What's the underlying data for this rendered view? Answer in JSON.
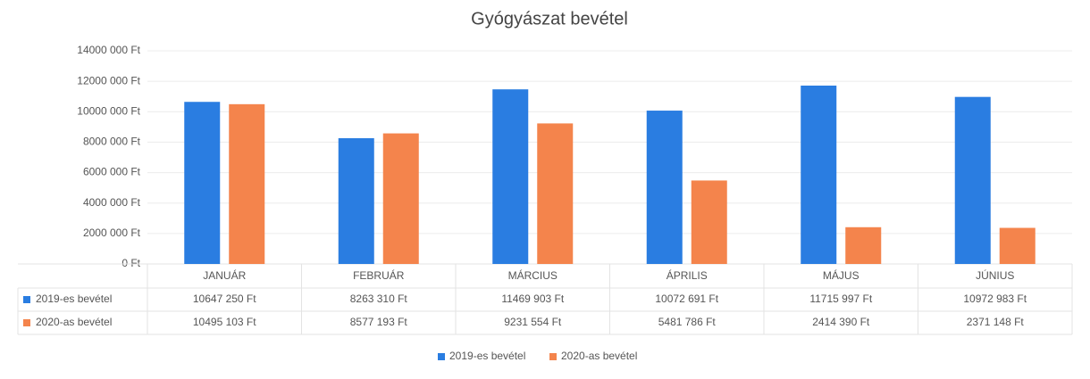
{
  "chart_data": {
    "type": "bar",
    "title": "Gyógyászat bevétel",
    "categories": [
      "JANUÁR",
      "FEBRUÁR",
      "MÁRCIUS",
      "ÁPRILIS",
      "MÁJUS",
      "JÚNIUS"
    ],
    "series": [
      {
        "name": "2019-es bevétel",
        "color": "#2a7de1",
        "values": [
          10647250,
          8263310,
          11469903,
          10072691,
          11715997,
          10972983
        ],
        "value_labels": [
          "10647 250 Ft",
          "8263 310 Ft",
          "11469 903 Ft",
          "10072 691 Ft",
          "11715 997 Ft",
          "10972 983 Ft"
        ]
      },
      {
        "name": "2020-as bevétel",
        "color": "#f4844c",
        "values": [
          10495103,
          8577193,
          9231554,
          5481786,
          2414390,
          2371148
        ],
        "value_labels": [
          "10495 103 Ft",
          "8577 193 Ft",
          "9231 554 Ft",
          "5481 786 Ft",
          "2414 390 Ft",
          "2371 148 Ft"
        ]
      }
    ],
    "ylim": [
      0,
      14000000
    ],
    "yticks": [
      {
        "value": 0,
        "label": "0 Ft"
      },
      {
        "value": 2000000,
        "label": "2000 000 Ft"
      },
      {
        "value": 4000000,
        "label": "4000 000 Ft"
      },
      {
        "value": 6000000,
        "label": "6000 000 Ft"
      },
      {
        "value": 8000000,
        "label": "8000 000 Ft"
      },
      {
        "value": 10000000,
        "label": "10000 000 Ft"
      },
      {
        "value": 12000000,
        "label": "12000 000 Ft"
      },
      {
        "value": 14000000,
        "label": "14000 000 Ft"
      }
    ],
    "grid": true,
    "legend": "bottom"
  }
}
